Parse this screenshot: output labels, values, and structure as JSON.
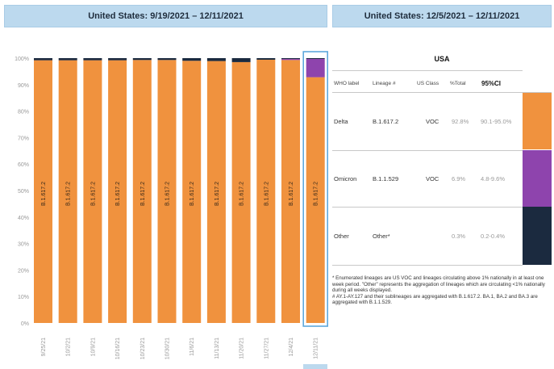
{
  "header_left": "United States: 9/19/2021 – 12/11/2021",
  "header_right": "United States: 12/5/2021 – 12/11/2021",
  "colors": {
    "delta": "#f0923e",
    "omicron": "#8e44ad",
    "other": "#1b2a3f",
    "header": "#bcd9ee"
  },
  "chart_data": {
    "type": "bar",
    "stacked": true,
    "categories": [
      "9/25/21",
      "10/2/21",
      "10/9/21",
      "10/16/21",
      "10/23/21",
      "10/30/21",
      "11/6/21",
      "11/13/21",
      "11/20/21",
      "11/27/21",
      "12/4/21",
      "12/11/21"
    ],
    "series": [
      {
        "name": "B.1.617.2",
        "values": [
          99.2,
          99.2,
          99.2,
          99.2,
          99.3,
          99.3,
          99.0,
          98.9,
          98.5,
          99.4,
          99.3,
          92.8
        ]
      },
      {
        "name": "B.1.1.529",
        "values": [
          0,
          0,
          0,
          0,
          0,
          0,
          0,
          0,
          0,
          0,
          0.4,
          6.9
        ]
      },
      {
        "name": "Other",
        "values": [
          0.8,
          0.8,
          0.8,
          0.8,
          0.7,
          0.7,
          1.0,
          1.1,
          1.5,
          0.6,
          0.3,
          0.3
        ]
      }
    ],
    "bar_labels": [
      "B.1.617.2",
      "B.1.617.2",
      "B.1.617.2",
      "B.1.617.2",
      "B.1.617.2",
      "B.1.617.2",
      "B.1.617.2",
      "B.1.617.2",
      "B.1.617.2",
      "B.1.617.2",
      "B.1.617.2",
      "B.1.617.2"
    ],
    "yticks": [
      "0%",
      "10%",
      "20%",
      "30%",
      "40%",
      "50%",
      "60%",
      "70%",
      "80%",
      "90%",
      "100%"
    ],
    "ylim": [
      0,
      100
    ],
    "highlighted_category": "12/11/21"
  },
  "table": {
    "title": "USA",
    "headers": {
      "who": "WHO label",
      "lineage": "Lineage #",
      "us_class": "US Class",
      "total": "%Total",
      "ci": "95%CI"
    },
    "rows": [
      {
        "who": "Delta",
        "lineage": "B.1.617.2",
        "us_class": "VOC",
        "total": "92.8%",
        "ci": "90.1-95.0%",
        "color": "#f0923e"
      },
      {
        "who": "Omicron",
        "lineage": "B.1.1.529",
        "us_class": "VOC",
        "total": "6.9%",
        "ci": "4.8-9.6%",
        "color": "#8e44ad"
      },
      {
        "who": "Other",
        "lineage": "Other*",
        "us_class": "",
        "total": "0.3%",
        "ci": "0.2-0.4%",
        "color": "#1b2a3f"
      }
    ]
  },
  "footnotes": [
    "*      Enumerated lineages are US VOC and lineages circulating above 1% nationally in at least one week period. \"Other\" represents the aggregation of lineages which are circulating <1% nationally during all weeks displayed.",
    "#      AY.1-AY.127 and their sublineages are aggregated with B.1.617.2. BA.1, BA.2 and BA.3 are aggregated with B.1.1.529."
  ]
}
